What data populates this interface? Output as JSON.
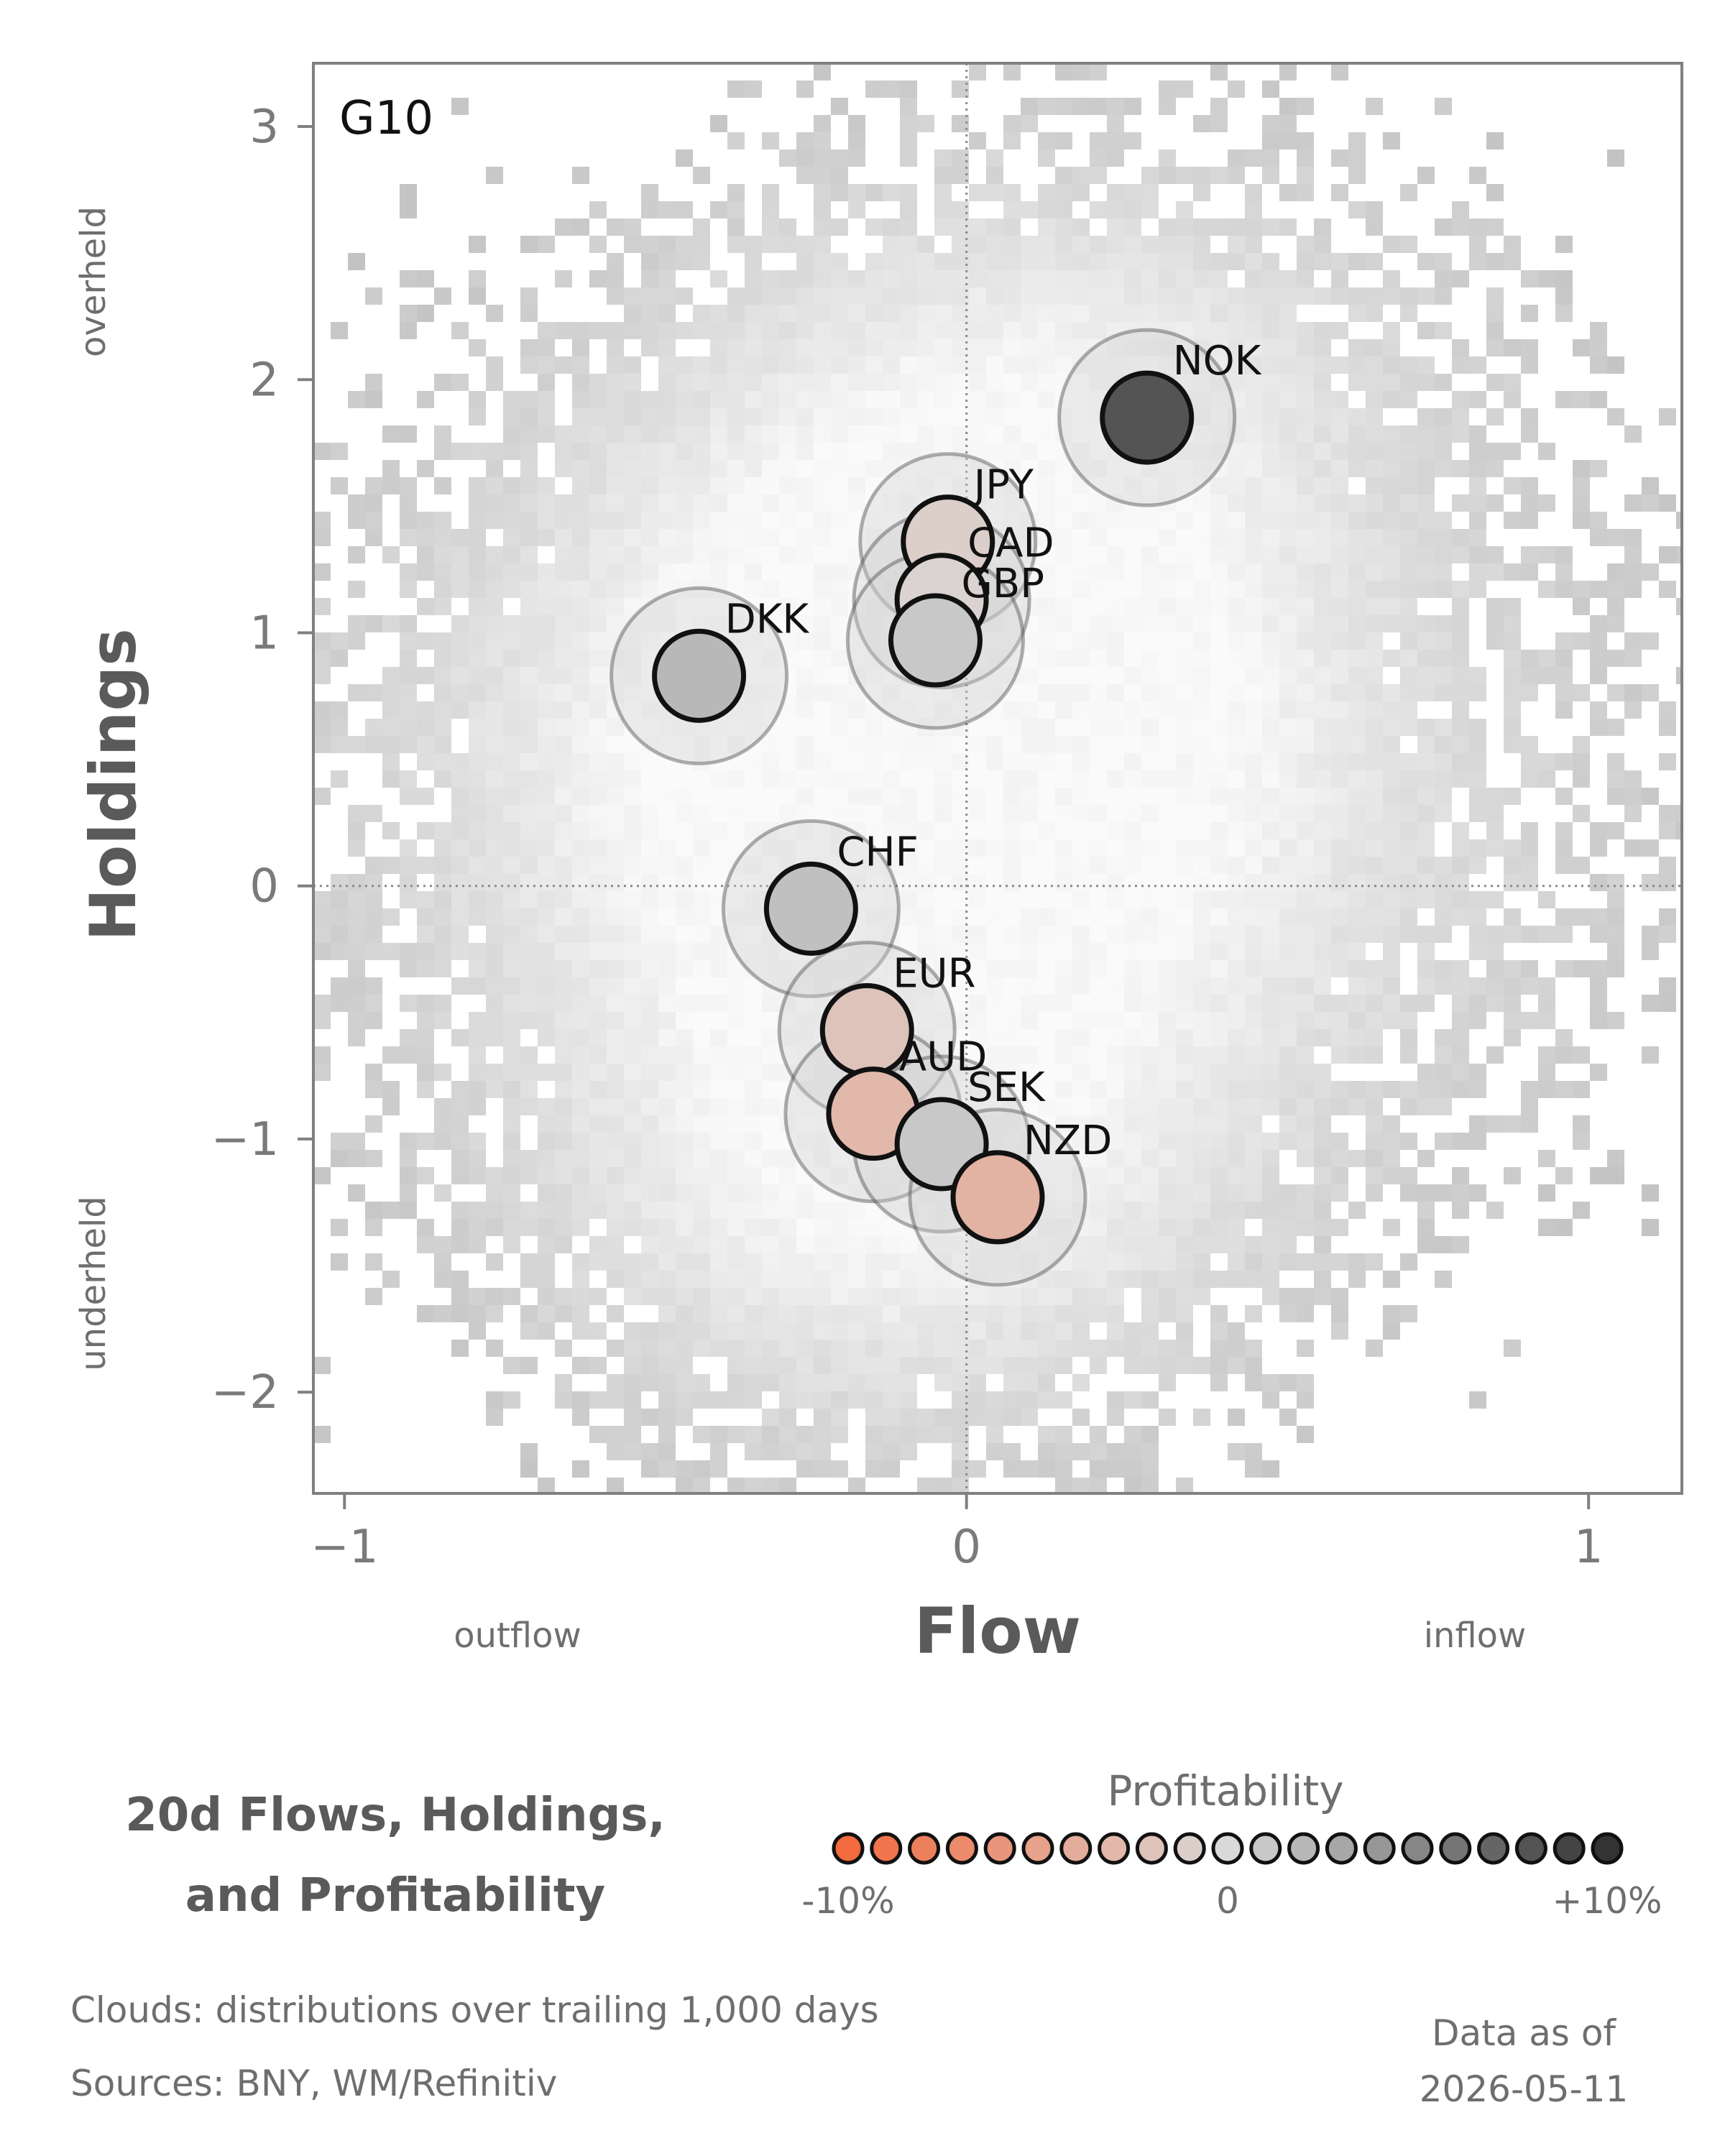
{
  "chart_data": {
    "type": "scatter",
    "panel_label": "G10",
    "xlabel": "Flow",
    "ylabel": "Holdings",
    "x_side_labels": {
      "left": "outflow",
      "right": "inflow"
    },
    "y_side_labels": {
      "top": "overheld",
      "bottom": "underheld"
    },
    "xlim": [
      -1.05,
      1.15
    ],
    "ylim": [
      -2.4,
      3.25
    ],
    "x_ticks": [
      {
        "value": -1,
        "label": "−1"
      },
      {
        "value": 0,
        "label": "0"
      },
      {
        "value": 1,
        "label": "1"
      }
    ],
    "y_ticks": [
      {
        "value": 3,
        "label": "3"
      },
      {
        "value": 2,
        "label": "2"
      },
      {
        "value": 1,
        "label": "1"
      },
      {
        "value": 0,
        "label": "0"
      },
      {
        "value": -1,
        "label": "−1"
      },
      {
        "value": -2,
        "label": "−2"
      }
    ],
    "grid": false,
    "reference_lines": {
      "x": 0,
      "y": 0,
      "style": "dotted"
    },
    "background": "2D density histogram (grey cloud) of trailing distributions",
    "points": [
      {
        "label": "NOK",
        "x": 0.29,
        "y": 1.85,
        "profitability": 8
      },
      {
        "label": "JPY",
        "x": -0.03,
        "y": 1.36,
        "profitability": -1
      },
      {
        "label": "CAD",
        "x": -0.04,
        "y": 1.13,
        "profitability": -0.5
      },
      {
        "label": "GBP",
        "x": -0.05,
        "y": 0.97,
        "profitability": 1
      },
      {
        "label": "DKK",
        "x": -0.43,
        "y": 0.83,
        "profitability": 2
      },
      {
        "label": "CHF",
        "x": -0.25,
        "y": -0.09,
        "profitability": 1.5
      },
      {
        "label": "EUR",
        "x": -0.16,
        "y": -0.57,
        "profitability": -2
      },
      {
        "label": "AUD",
        "x": -0.15,
        "y": -0.9,
        "profitability": -3
      },
      {
        "label": "SEK",
        "x": -0.04,
        "y": -1.02,
        "profitability": 1
      },
      {
        "label": "NZD",
        "x": 0.05,
        "y": -1.23,
        "profitability": -3.5
      }
    ],
    "legend": {
      "title": "Profitability",
      "min": -10,
      "max": 10,
      "steps": 21,
      "tick_labels": [
        "-10%",
        "0",
        "+10%"
      ],
      "colors": {
        "negative": "#f26a3d",
        "neutral": "#d9d9d9",
        "positive": "#333333"
      }
    }
  },
  "title_lines": [
    "20d Flows, Holdings,",
    "and Profitability"
  ],
  "footer": {
    "clouds": "Clouds:  distributions over trailing 1,000 days",
    "sources": "Sources:  BNY, WM/Refinitiv",
    "data_as_of_label": "Data as of",
    "data_as_of_date": "2026-05-11"
  }
}
